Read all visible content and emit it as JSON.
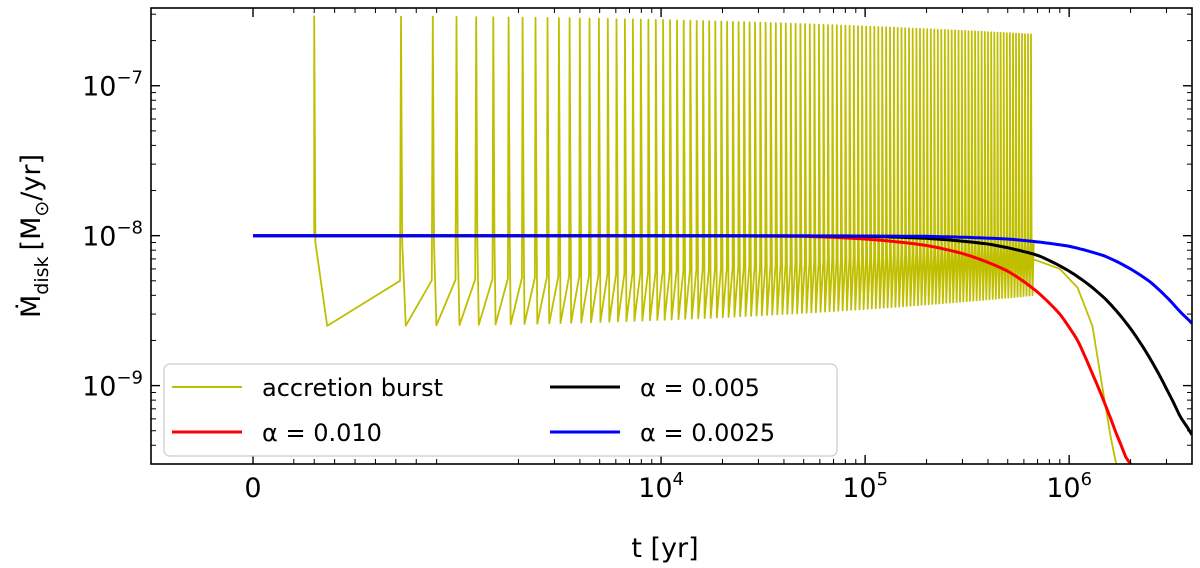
{
  "chart_data": {
    "type": "line",
    "xlabel": "t [yr]",
    "ylabel_main": "Ṁ",
    "ylabel_sub": "disk",
    "ylabel_units": "[M",
    "ylabel_sun": "⊙",
    "ylabel_end": "/yr]",
    "xscale": "symlog",
    "yscale": "log",
    "xlim": [
      -500,
      4000000
    ],
    "ylim": [
      3e-10,
      3.3e-07
    ],
    "x_ticks": [
      {
        "value": 0,
        "base": "0",
        "exp": ""
      },
      {
        "value": 10000,
        "base": "10",
        "exp": "4"
      },
      {
        "value": 100000,
        "base": "10",
        "exp": "5"
      },
      {
        "value": 1000000,
        "base": "10",
        "exp": "6"
      }
    ],
    "y_ticks": [
      {
        "value": 1e-09,
        "base": "10",
        "exp": "−9"
      },
      {
        "value": 1e-08,
        "base": "10",
        "exp": "−8"
      },
      {
        "value": 1e-07,
        "base": "10",
        "exp": "−7"
      }
    ],
    "grid": false,
    "legend_position": "bottom-left",
    "colors": {
      "burst": "#bfbf00",
      "a010": "#ff0000",
      "a005": "#000000",
      "a0025": "#0000ff"
    },
    "series": [
      {
        "name": "accretion burst",
        "color_key": "burst",
        "style": "burst",
        "baseline": 1e-08,
        "burst_peak_early": 2.9e-07,
        "burst_peak_late": 2.2e-07,
        "dip_floor": 2.5e-09,
        "burst_end_t": 650000,
        "tail": [
          [
            650000,
            7e-09
          ],
          [
            700000,
            6.8e-09
          ],
          [
            900000,
            6e-09
          ],
          [
            1100000,
            4.5e-09
          ],
          [
            1300000,
            2.5e-09
          ],
          [
            1450000,
            1e-09
          ],
          [
            1600000,
            4.5e-10
          ],
          [
            1700000,
            3e-10
          ]
        ]
      },
      {
        "name": "α = 0.010",
        "color_key": "a010",
        "style": "smooth",
        "points": [
          [
            0,
            1e-08
          ],
          [
            50000,
            9.9e-09
          ],
          [
            100000,
            9.5e-09
          ],
          [
            200000,
            8.6e-09
          ],
          [
            300000,
            7.6e-09
          ],
          [
            500000,
            5.8e-09
          ],
          [
            700000,
            4.2e-09
          ],
          [
            900000,
            3e-09
          ],
          [
            1100000,
            2e-09
          ],
          [
            1300000,
            1.2e-09
          ],
          [
            1500000,
            7.5e-10
          ],
          [
            1700000,
            4.8e-10
          ],
          [
            1900000,
            3.3e-10
          ],
          [
            2000000,
            3e-10
          ]
        ]
      },
      {
        "name": "α = 0.005",
        "color_key": "a005",
        "style": "smooth",
        "points": [
          [
            0,
            1e-08
          ],
          [
            100000,
            9.9e-09
          ],
          [
            200000,
            9.6e-09
          ],
          [
            400000,
            8.8e-09
          ],
          [
            700000,
            7.4e-09
          ],
          [
            1000000,
            5.8e-09
          ],
          [
            1500000,
            3.8e-09
          ],
          [
            2000000,
            2.4e-09
          ],
          [
            2500000,
            1.5e-09
          ],
          [
            3000000,
            9.5e-10
          ],
          [
            3500000,
            6.2e-10
          ],
          [
            4000000,
            4.7e-10
          ]
        ]
      },
      {
        "name": "α = 0.0025",
        "color_key": "a0025",
        "style": "smooth",
        "points": [
          [
            0,
            1e-08
          ],
          [
            200000,
            9.9e-09
          ],
          [
            500000,
            9.5e-09
          ],
          [
            1000000,
            8.5e-09
          ],
          [
            1500000,
            7.3e-09
          ],
          [
            2000000,
            6e-09
          ],
          [
            2500000,
            4.9e-09
          ],
          [
            3000000,
            3.9e-09
          ],
          [
            3500000,
            3.1e-09
          ],
          [
            4000000,
            2.6e-09
          ]
        ]
      }
    ],
    "legend": [
      {
        "label": "accretion burst",
        "color_key": "burst"
      },
      {
        "label": "α = 0.010",
        "color_key": "a010"
      },
      {
        "label": "α = 0.005",
        "color_key": "a005"
      },
      {
        "label": "α = 0.0025",
        "color_key": "a0025"
      }
    ]
  }
}
